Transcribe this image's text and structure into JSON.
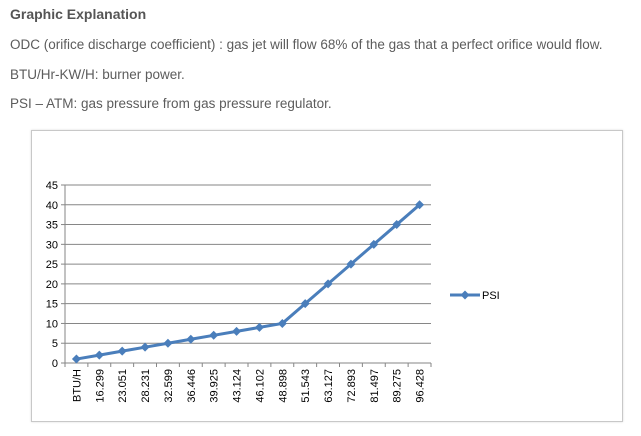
{
  "page": {
    "heading": "Graphic Explanation",
    "lines": [
      "ODC (orifice discharge coefficient) : gas jet will flow 68% of the gas that a perfect orifice would flow.",
      "BTU/Hr-KW/H: burner power.",
      "PSI – ATM: gas pressure from gas pressure regulator."
    ]
  },
  "chart_data": {
    "type": "line",
    "title": "",
    "xlabel": "",
    "ylabel": "",
    "categories": [
      "BTU/H",
      "16.299",
      "23.051",
      "28.231",
      "32.599",
      "36.446",
      "39.925",
      "43.124",
      "46.102",
      "48.898",
      "51.543",
      "63.127",
      "72.893",
      "81.497",
      "89.275",
      "96.428"
    ],
    "series": [
      {
        "name": "PSI",
        "values": [
          1,
          2,
          3,
          4,
          5,
          6,
          7,
          8,
          9,
          10,
          15,
          20,
          25,
          30,
          35,
          40
        ],
        "color": "#4a7ebb",
        "marker": "diamond"
      }
    ],
    "ylim": [
      0,
      45
    ],
    "yticks": [
      0,
      5,
      10,
      15,
      20,
      25,
      30,
      35,
      40,
      45
    ],
    "grid": "horizontal",
    "legend": "right"
  }
}
